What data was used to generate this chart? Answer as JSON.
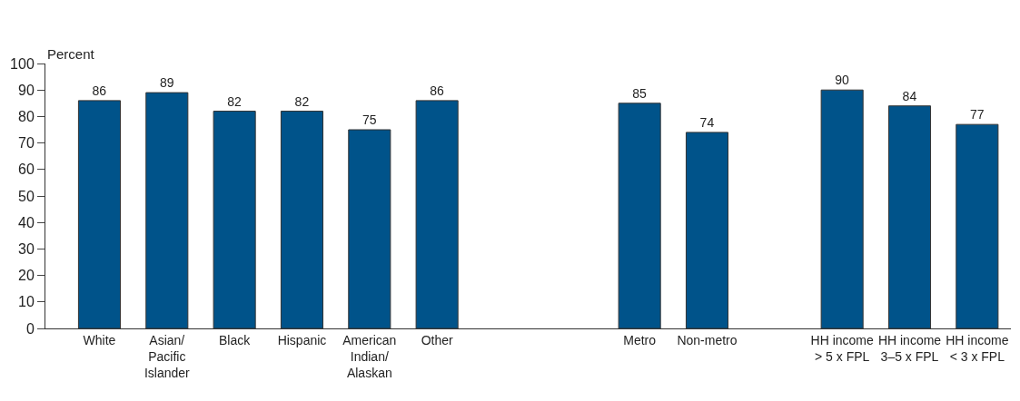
{
  "chart_data": {
    "type": "bar",
    "ylabel": "Percent",
    "categories": [
      "White",
      "Asian/\nPacific\nIslander",
      "Black",
      "Hispanic",
      "American\nIndian/\nAlaskan",
      "Other",
      null,
      null,
      "Metro",
      "Non-metro",
      null,
      "HH income\n> 5 x FPL",
      "HH income\n3–5 x FPL",
      "HH income\n< 3 x FPL"
    ],
    "values": [
      86,
      89,
      82,
      82,
      75,
      86,
      null,
      null,
      85,
      74,
      null,
      90,
      84,
      77
    ],
    "color": "#00538a",
    "ylim": [
      0,
      100
    ],
    "yticks": [
      0,
      10,
      20,
      30,
      40,
      50,
      60,
      70,
      80,
      90,
      100
    ],
    "data_labels": true
  }
}
